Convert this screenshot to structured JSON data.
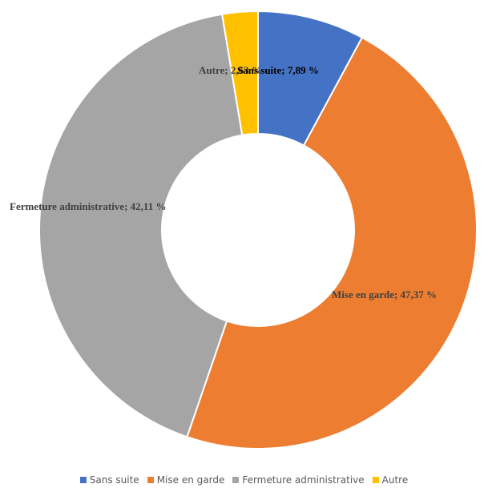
{
  "chart_data": {
    "type": "donut",
    "categories": [
      "Sans suite",
      "Mise en garde",
      "Fermeture administrative",
      "Autre"
    ],
    "values": [
      7.89,
      47.37,
      42.11,
      2.63
    ],
    "value_labels": [
      "Sans suite; 7,89 %",
      "Mise en garde; 47,37 %",
      "Fermeture administrative; 42,11 %",
      "Autre; 2,63 %"
    ],
    "colors": [
      "#4472c4",
      "#ed7d31",
      "#a5a5a5",
      "#ffc000"
    ],
    "legend": "bottom"
  }
}
